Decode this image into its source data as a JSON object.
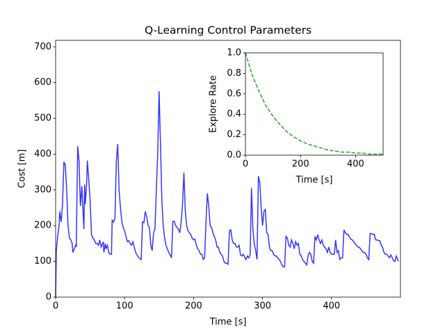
{
  "chart_data": [
    {
      "type": "line",
      "title": "Q-Learning Control Parameters",
      "x_label": "Time [s]",
      "y_label": "Cost [m]",
      "color": "#3333ff",
      "line_style": "solid",
      "xlim": [
        0,
        500
      ],
      "ylim": [
        0,
        718
      ],
      "xticks": [
        0,
        100,
        200,
        300,
        400
      ],
      "yticks": [
        0,
        100,
        200,
        300,
        400,
        500,
        600,
        700
      ],
      "x": [
        0,
        1,
        3,
        5,
        6,
        8,
        10,
        12,
        14,
        16,
        18,
        20,
        22,
        24,
        25,
        27,
        29,
        30,
        31,
        32,
        34,
        35,
        36,
        38,
        40,
        41,
        42,
        43,
        45,
        46,
        48,
        50,
        52,
        54,
        56,
        58,
        60,
        62,
        64,
        66,
        67,
        69,
        70,
        72,
        73,
        75,
        77,
        79,
        81,
        82,
        84,
        86,
        88,
        90,
        92,
        94,
        96,
        98,
        100,
        102,
        104,
        106,
        108,
        110,
        112,
        114,
        116,
        118,
        120,
        122,
        124,
        126,
        128,
        130,
        132,
        134,
        136,
        138,
        140,
        142,
        144,
        146,
        148,
        150,
        152,
        154,
        156,
        158,
        160,
        162,
        164,
        166,
        168,
        170,
        172,
        174,
        176,
        178,
        180,
        182,
        184,
        186,
        188,
        190,
        192,
        194,
        196,
        198,
        200,
        202,
        204,
        206,
        208,
        210,
        212,
        214,
        216,
        218,
        220,
        222,
        224,
        226,
        228,
        230,
        232,
        234,
        236,
        238,
        240,
        242,
        244,
        246,
        248,
        250,
        252,
        254,
        256,
        258,
        260,
        262,
        264,
        266,
        268,
        270,
        272,
        274,
        276,
        278,
        280,
        282,
        284,
        286,
        288,
        290,
        292,
        294,
        296,
        298,
        300,
        302,
        304,
        306,
        308,
        310,
        312,
        314,
        316,
        318,
        320,
        322,
        324,
        326,
        328,
        330,
        332,
        334,
        336,
        338,
        340,
        342,
        344,
        346,
        348,
        350,
        352,
        354,
        356,
        358,
        360,
        362,
        364,
        366,
        368,
        370,
        372,
        374,
        376,
        378,
        380,
        382,
        384,
        386,
        388,
        390,
        392,
        394,
        396,
        398,
        400,
        402,
        404,
        406,
        408,
        410,
        412,
        414,
        416,
        418,
        420,
        422,
        424,
        426,
        428,
        430,
        432,
        434,
        436,
        438,
        440,
        442,
        444,
        446,
        448,
        450,
        452,
        454,
        456,
        458,
        460,
        462,
        464,
        466,
        468,
        470,
        472,
        474,
        476,
        478,
        480,
        482,
        484,
        486,
        488,
        490,
        492,
        494,
        497
      ],
      "values": [
        0,
        130,
        170,
        200,
        240,
        210,
        260,
        378,
        370,
        300,
        200,
        165,
        160,
        150,
        125,
        135,
        145,
        140,
        290,
        422,
        380,
        310,
        255,
        310,
        230,
        190,
        315,
        260,
        320,
        382,
        330,
        270,
        175,
        165,
        160,
        150,
        150,
        145,
        160,
        140,
        145,
        155,
        125,
        150,
        135,
        145,
        125,
        120,
        120,
        215,
        210,
        220,
        380,
        428,
        300,
        250,
        210,
        195,
        185,
        170,
        155,
        158,
        150,
        145,
        155,
        140,
        125,
        118,
        112,
        108,
        105,
        210,
        208,
        240,
        225,
        200,
        195,
        145,
        130,
        180,
        190,
        300,
        400,
        576,
        430,
        270,
        200,
        165,
        145,
        135,
        125,
        118,
        110,
        212,
        212,
        200,
        195,
        190,
        180,
        210,
        260,
        348,
        240,
        200,
        185,
        180,
        175,
        165,
        160,
        162,
        145,
        135,
        130,
        120,
        120,
        105,
        110,
        210,
        290,
        255,
        200,
        195,
        180,
        170,
        160,
        140,
        140,
        125,
        120,
        115,
        100,
        95,
        95,
        92,
        185,
        188,
        160,
        150,
        150,
        140,
        140,
        145,
        118,
        115,
        120,
        112,
        105,
        115,
        110,
        118,
        305,
        190,
        150,
        130,
        105,
        338,
        320,
        250,
        200,
        240,
        245,
        180,
        175,
        140,
        130,
        130,
        120,
        115,
        115,
        110,
        105,
        100,
        90,
        85,
        85,
        170,
        165,
        145,
        140,
        160,
        150,
        135,
        155,
        145,
        150,
        120,
        115,
        105,
        100,
        95,
        90,
        115,
        125,
        120,
        100,
        95,
        170,
        160,
        175,
        160,
        150,
        160,
        145,
        140,
        135,
        125,
        140,
        125,
        120,
        120,
        120,
        160,
        125,
        130,
        105,
        110,
        110,
        188,
        180,
        175,
        175,
        168,
        162,
        160,
        155,
        150,
        145,
        140,
        140,
        135,
        130,
        125,
        125,
        120,
        110,
        105,
        178,
        178,
        175,
        176,
        160,
        160,
        158,
        158,
        145,
        140,
        125,
        120,
        120,
        115,
        110,
        118,
        110,
        102,
        100,
        115,
        100
      ]
    },
    {
      "type": "line",
      "x_label": "Time [s]",
      "y_label": "Explore Rate",
      "color": "#2ca02c",
      "line_style": "dashed",
      "xlim": [
        0,
        500
      ],
      "ylim": [
        0,
        1
      ],
      "xticks": [
        0,
        200,
        400
      ],
      "yticks": [
        {
          "value": 0,
          "label": "0.0"
        },
        {
          "value": 0.2,
          "label": "0.2"
        },
        {
          "value": 0.4,
          "label": "0.4"
        },
        {
          "value": 0.6,
          "label": "0.6"
        },
        {
          "value": 0.8,
          "label": "0.8"
        },
        {
          "value": 1,
          "label": "1.0"
        }
      ],
      "x": [
        0,
        25,
        50,
        75,
        100,
        125,
        150,
        175,
        200,
        225,
        250,
        275,
        300,
        325,
        350,
        375,
        400,
        425,
        450,
        475,
        500
      ],
      "values": [
        1.0,
        0.78,
        0.62,
        0.48,
        0.38,
        0.3,
        0.23,
        0.18,
        0.14,
        0.11,
        0.09,
        0.07,
        0.05,
        0.04,
        0.03,
        0.03,
        0.02,
        0.02,
        0.01,
        0.01,
        0.01
      ]
    }
  ]
}
